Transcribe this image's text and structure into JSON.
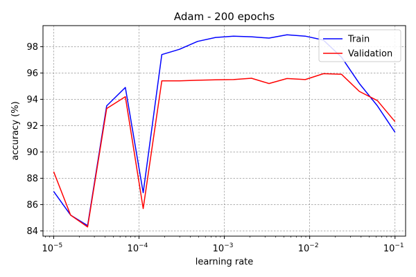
{
  "chart_data": {
    "type": "line",
    "title": "Adam - 200 epochs",
    "xlabel": "learning rate",
    "ylabel": "accuracy (%)",
    "x_scale": "log",
    "xlim": [
      7.5e-06,
      0.133
    ],
    "ylim": [
      83.6,
      99.6
    ],
    "x_ticks": [
      {
        "value": 1e-05,
        "base": "10",
        "exp": "−5"
      },
      {
        "value": 0.0001,
        "base": "10",
        "exp": "−4"
      },
      {
        "value": 0.001,
        "base": "10",
        "exp": "−3"
      },
      {
        "value": 0.01,
        "base": "10",
        "exp": "−2"
      },
      {
        "value": 0.1,
        "base": "10",
        "exp": "−1"
      }
    ],
    "y_ticks": [
      "84",
      "86",
      "88",
      "90",
      "92",
      "94",
      "96",
      "98"
    ],
    "grid": true,
    "legend_position": "upper right",
    "x": [
      1e-05,
      1.58e-05,
      2.5e-05,
      4.18e-05,
      6.92e-05,
      0.000112,
      0.000185,
      0.000298,
      0.000485,
      0.000788,
      0.00128,
      0.00208,
      0.00334,
      0.00542,
      0.00888,
      0.0145,
      0.0236,
      0.0382,
      0.0622,
      0.1
    ],
    "series": [
      {
        "name": "Train",
        "color": "#0000ff",
        "values": [
          87.0,
          85.2,
          84.4,
          93.5,
          94.9,
          86.9,
          97.4,
          97.8,
          98.4,
          98.7,
          98.8,
          98.75,
          98.65,
          98.9,
          98.8,
          98.5,
          97.2,
          95.2,
          93.5,
          91.5
        ]
      },
      {
        "name": "Validation",
        "color": "#ff0000",
        "values": [
          88.5,
          85.2,
          84.3,
          93.3,
          94.2,
          85.7,
          95.4,
          95.4,
          95.45,
          95.48,
          95.5,
          95.6,
          95.2,
          95.58,
          95.5,
          95.95,
          95.9,
          94.6,
          93.9,
          92.3
        ]
      }
    ]
  }
}
